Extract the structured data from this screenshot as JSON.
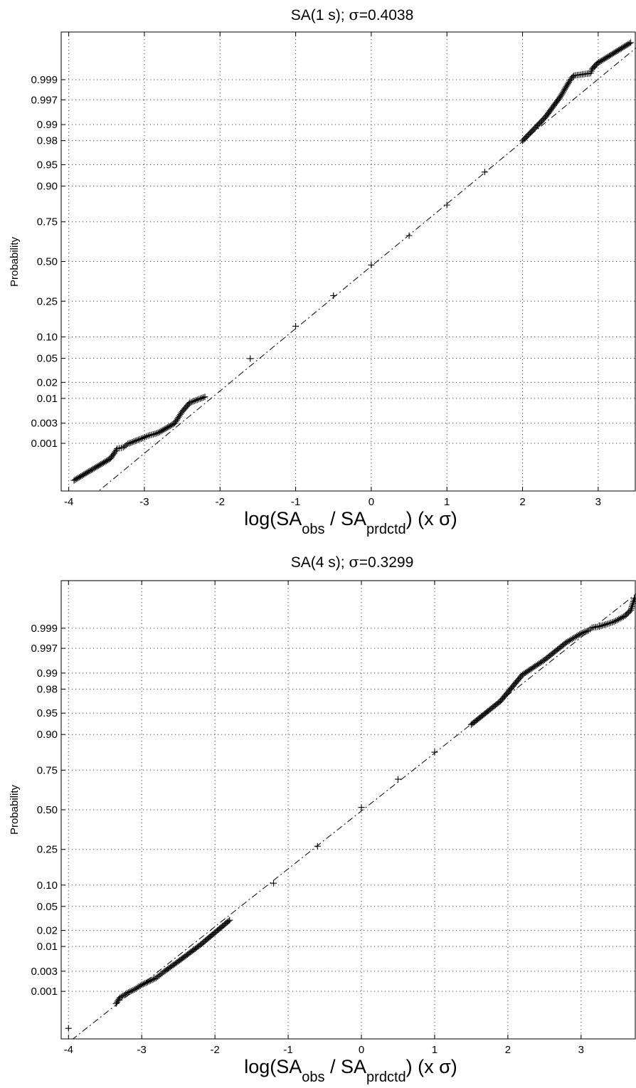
{
  "chart_data": [
    {
      "type": "scatter",
      "subtype": "normal-probability-plot",
      "title": "SA(1 s); σ=0.4038",
      "title_parts": {
        "name": "SA(1 s); ",
        "sigma_symbol": "σ",
        "sigma_value": "=0.4038"
      },
      "ylabel": "Probability",
      "xlabel": {
        "pre": "log(SA",
        "sub1": "obs",
        "mid": " / SA",
        "sub2": "prdctd",
        "post": ") (x σ)"
      },
      "xlim": [
        -4.1,
        3.5
      ],
      "x_ticks": [
        -4,
        -3,
        -2,
        -1,
        0,
        1,
        2,
        3
      ],
      "x_tick_labels": [
        "-4",
        "-3",
        "-2",
        "-1",
        "0",
        "1",
        "2",
        "3"
      ],
      "y_scale": "normal-probability",
      "ylim_z": [
        -3.9,
        3.9
      ],
      "y_ticks": [
        0.001,
        0.003,
        0.01,
        0.02,
        0.05,
        0.1,
        0.25,
        0.5,
        0.75,
        0.9,
        0.95,
        0.98,
        0.99,
        0.997,
        0.999
      ],
      "y_tick_labels": [
        "0.001",
        "0.003",
        "0.01",
        "0.02",
        "0.05",
        "0.10",
        "0.25",
        "0.50",
        "0.75",
        "0.90",
        "0.95",
        "0.98",
        "0.99",
        "0.997",
        "0.999"
      ],
      "grid": true,
      "reference_line": {
        "style": "dash-dot",
        "slope": 1.06,
        "intercept_z": -0.08
      },
      "points": [
        {
          "x": -3.93,
          "z": -3.72
        },
        {
          "x": -3.45,
          "z": -3.35
        },
        {
          "x": -3.4,
          "z": -3.26
        },
        {
          "x": -3.36,
          "z": -3.18
        },
        {
          "x": -3.28,
          "z": -3.16
        },
        {
          "x": -3.22,
          "z": -3.1
        },
        {
          "x": -3.12,
          "z": -3.05
        },
        {
          "x": -3.02,
          "z": -3.0
        },
        {
          "x": -2.95,
          "z": -2.96
        },
        {
          "x": -2.86,
          "z": -2.93
        },
        {
          "x": -2.8,
          "z": -2.9
        },
        {
          "x": -2.6,
          "z": -2.75
        },
        {
          "x": -2.5,
          "z": -2.55
        },
        {
          "x": -2.4,
          "z": -2.4
        },
        {
          "x": -2.2,
          "z": -2.3
        },
        {
          "x": -1.6,
          "z": -1.65
        },
        {
          "x": -1.0,
          "z": -1.1
        },
        {
          "x": -0.5,
          "z": -0.58
        },
        {
          "x": 0.0,
          "z": -0.06
        },
        {
          "x": 0.5,
          "z": 0.44
        },
        {
          "x": 1.0,
          "z": 0.96
        },
        {
          "x": 1.5,
          "z": 1.52
        },
        {
          "x": 2.0,
          "z": 2.05
        },
        {
          "x": 2.3,
          "z": 2.45
        },
        {
          "x": 2.5,
          "z": 2.8
        },
        {
          "x": 2.6,
          "z": 3.02
        },
        {
          "x": 2.65,
          "z": 3.12
        },
        {
          "x": 2.68,
          "z": 3.16
        },
        {
          "x": 2.9,
          "z": 3.2
        },
        {
          "x": 2.92,
          "z": 3.27
        },
        {
          "x": 2.99,
          "z": 3.37
        },
        {
          "x": 3.43,
          "z": 3.72
        }
      ]
    },
    {
      "type": "scatter",
      "subtype": "normal-probability-plot",
      "title": "SA(4 s); σ=0.3299",
      "title_parts": {
        "name": "SA(4 s); ",
        "sigma_symbol": "σ",
        "sigma_value": "=0.3299"
      },
      "ylabel": "Probability",
      "xlabel": {
        "pre": "log(SA",
        "sub1": "obs",
        "mid": " / SA",
        "sub2": "prdctd",
        "post": ") (x σ)"
      },
      "xlim": [
        -4.1,
        3.75
      ],
      "x_ticks": [
        -4,
        -3,
        -2,
        -1,
        0,
        1,
        2,
        3
      ],
      "x_tick_labels": [
        "-4",
        "-3",
        "-2",
        "-1",
        "0",
        "1",
        "2",
        "3"
      ],
      "y_scale": "normal-probability",
      "ylim_z": [
        -3.9,
        3.9
      ],
      "y_ticks": [
        0.001,
        0.003,
        0.01,
        0.02,
        0.05,
        0.1,
        0.25,
        0.5,
        0.75,
        0.9,
        0.95,
        0.98,
        0.99,
        0.997,
        0.999
      ],
      "y_tick_labels": [
        "0.001",
        "0.003",
        "0.01",
        "0.02",
        "0.05",
        "0.10",
        "0.25",
        "0.50",
        "0.75",
        "0.90",
        "0.95",
        "0.98",
        "0.99",
        "0.997",
        "0.999"
      ],
      "grid": true,
      "reference_line": {
        "style": "dash-dot",
        "slope": 0.985,
        "intercept_z": -0.02
      },
      "points": [
        {
          "x": -4.0,
          "z": -3.72
        },
        {
          "x": -3.35,
          "z": -3.3
        },
        {
          "x": -3.3,
          "z": -3.2
        },
        {
          "x": -3.2,
          "z": -3.12
        },
        {
          "x": -3.1,
          "z": -3.06
        },
        {
          "x": -3.0,
          "z": -2.98
        },
        {
          "x": -2.8,
          "z": -2.86
        },
        {
          "x": -2.7,
          "z": -2.76
        },
        {
          "x": -2.5,
          "z": -2.58
        },
        {
          "x": -2.2,
          "z": -2.3
        },
        {
          "x": -1.8,
          "z": -1.88
        },
        {
          "x": -1.2,
          "z": -1.25
        },
        {
          "x": -0.6,
          "z": -0.62
        },
        {
          "x": 0.0,
          "z": 0.04
        },
        {
          "x": 0.5,
          "z": 0.52
        },
        {
          "x": 1.0,
          "z": 0.98
        },
        {
          "x": 1.5,
          "z": 1.45
        },
        {
          "x": 1.9,
          "z": 1.85
        },
        {
          "x": 2.2,
          "z": 2.3
        },
        {
          "x": 2.5,
          "z": 2.55
        },
        {
          "x": 2.8,
          "z": 2.85
        },
        {
          "x": 3.0,
          "z": 3.0
        },
        {
          "x": 3.1,
          "z": 3.05
        },
        {
          "x": 3.15,
          "z": 3.1
        },
        {
          "x": 3.25,
          "z": 3.12
        },
        {
          "x": 3.45,
          "z": 3.2
        },
        {
          "x": 3.6,
          "z": 3.3
        },
        {
          "x": 3.68,
          "z": 3.4
        },
        {
          "x": 3.73,
          "z": 3.6
        }
      ]
    }
  ]
}
